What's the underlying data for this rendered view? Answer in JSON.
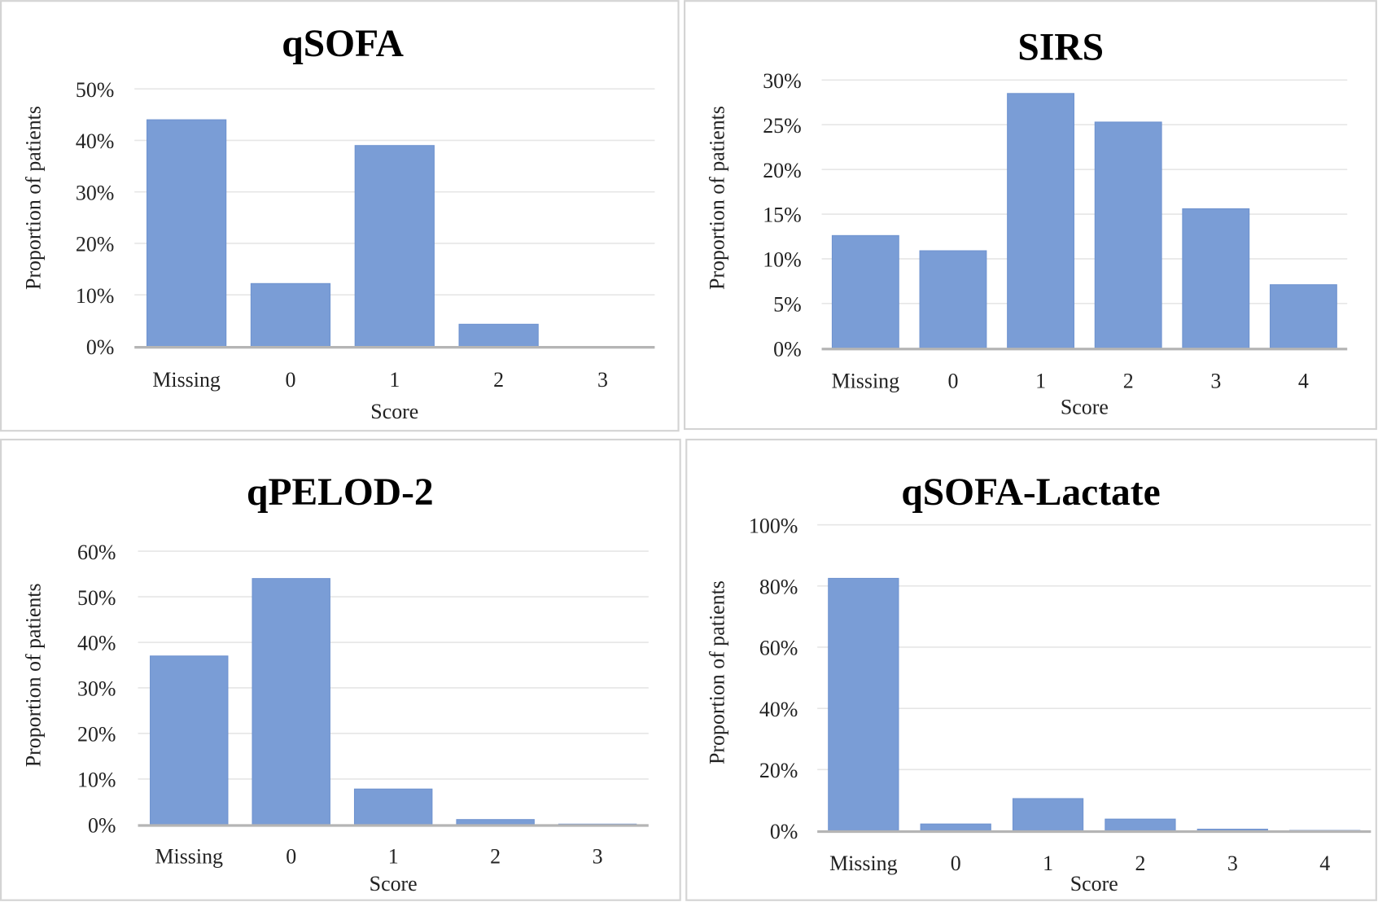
{
  "bar_color": "#7a9dd6",
  "chart_data": [
    {
      "type": "bar",
      "title": "qSOFA",
      "xlabel": "Score",
      "ylabel": "Proportion of patients",
      "categories": [
        "Missing",
        "0",
        "1",
        "2",
        "3"
      ],
      "values": [
        44.0,
        12.2,
        39.0,
        4.3,
        0.0
      ],
      "ylim": [
        0,
        50
      ],
      "yticks": [
        "0%",
        "10%",
        "20%",
        "30%",
        "40%",
        "50%"
      ],
      "grid": true
    },
    {
      "type": "bar",
      "title": "SIRS",
      "xlabel": "Score",
      "ylabel": "Proportion of patients",
      "categories": [
        "Missing",
        "0",
        "1",
        "2",
        "3",
        "4"
      ],
      "values": [
        12.6,
        10.9,
        28.5,
        25.3,
        15.6,
        7.1
      ],
      "ylim": [
        0,
        30
      ],
      "yticks": [
        "0%",
        "5%",
        "10%",
        "15%",
        "20%",
        "25%",
        "30%"
      ],
      "grid": true
    },
    {
      "type": "bar",
      "title": "qPELOD-2",
      "xlabel": "Score",
      "ylabel": "Proportion of patients",
      "categories": [
        "Missing",
        "0",
        "1",
        "2",
        "3"
      ],
      "values": [
        37.0,
        54.0,
        7.8,
        1.1,
        0.1
      ],
      "ylim": [
        0,
        60
      ],
      "yticks": [
        "0%",
        "10%",
        "20%",
        "30%",
        "40%",
        "50%",
        "60%"
      ],
      "grid": true
    },
    {
      "type": "bar",
      "title": "qSOFA-Lactate",
      "xlabel": "Score",
      "ylabel": "Proportion of patients",
      "categories": [
        "Missing",
        "0",
        "1",
        "2",
        "3",
        "4"
      ],
      "values": [
        82.5,
        2.2,
        10.5,
        3.8,
        0.5,
        0.1
      ],
      "ylim": [
        0,
        100
      ],
      "yticks": [
        "0%",
        "20%",
        "40%",
        "60%",
        "80%",
        "100%"
      ],
      "grid": true
    }
  ]
}
